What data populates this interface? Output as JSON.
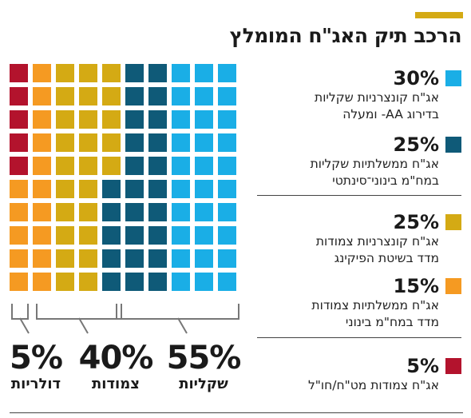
{
  "title": "הרכב תיק האג\"ח המומלץ",
  "colors": {
    "accent": "#d4aa14",
    "light_blue": "#1aaee6",
    "dark_teal": "#0f5a78",
    "gold": "#d4aa14",
    "orange": "#f59a22",
    "red": "#b3132d"
  },
  "chart_data": {
    "type": "waffle",
    "grid": {
      "rows": 10,
      "cols": 10
    },
    "series": [
      {
        "pct": "30%",
        "value": 30,
        "label_lines": [
          "אג\"ח קונצרניות שקליות",
          "בדירוג AA- ומעלה"
        ],
        "color": "#1aaee6"
      },
      {
        "pct": "25%",
        "value": 25,
        "label_lines": [
          "אג\"ח ממשלתיות שקליות",
          "במח\"מ בינוני־סינתטי"
        ],
        "color": "#0f5a78"
      },
      {
        "pct": "25%",
        "value": 25,
        "label_lines": [
          "אג\"ח קונצרניות צמודות",
          "מדד בשיטת הפיקינג"
        ],
        "color": "#d4aa14"
      },
      {
        "pct": "15%",
        "value": 15,
        "label_lines": [
          "אג\"ח ממשלתיות צמודות",
          "מדד במח\"מ בינוני"
        ],
        "color": "#f59a22"
      },
      {
        "pct": "5%",
        "value": 5,
        "label_lines": [
          "אג\"ח צמודות מט\"ח/חו\"ל"
        ],
        "color": "#b3132d"
      }
    ],
    "groups": [
      {
        "pct": "55%",
        "value": 55,
        "label": "שקליות"
      },
      {
        "pct": "40%",
        "value": 40,
        "label": "צמודות"
      },
      {
        "pct": "5%",
        "value": 5,
        "label": "דולריות"
      }
    ]
  }
}
